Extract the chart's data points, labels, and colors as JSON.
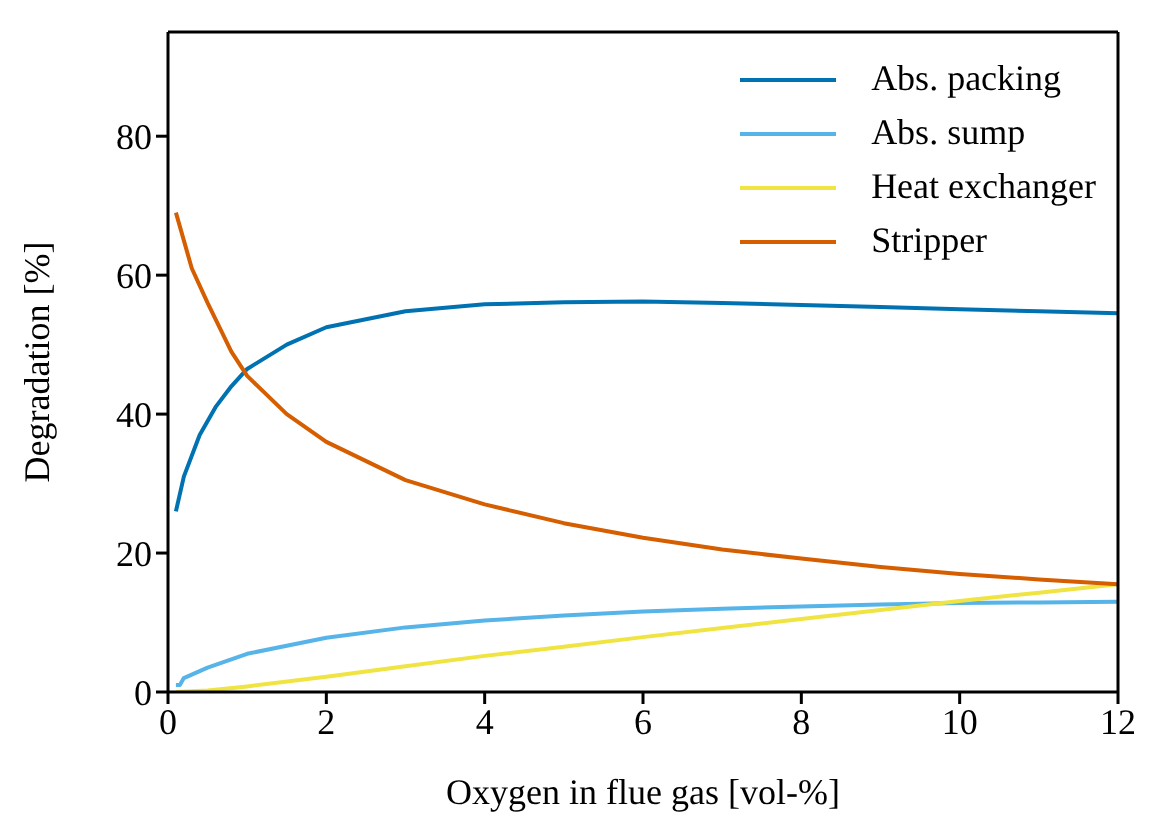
{
  "chart_data": {
    "type": "line",
    "xlabel": "Oxygen in flue gas [vol-%]",
    "ylabel": "Degradation [%]",
    "xlim": [
      0,
      12
    ],
    "xticks": [
      0,
      2,
      4,
      6,
      8,
      10,
      12
    ],
    "ylim": [
      0,
      95
    ],
    "yticks": [
      0,
      20,
      40,
      60,
      80
    ],
    "grid": false,
    "legend": "top right",
    "marker": "none",
    "line_style": "solid",
    "series": [
      {
        "name": "Abs. packing",
        "color": "#0072b2",
        "x": [
          0.1,
          0.2,
          0.4,
          0.6,
          0.8,
          1,
          1.5,
          2,
          3,
          4,
          5,
          6,
          7,
          8,
          9,
          10,
          11,
          12
        ],
        "values": [
          26,
          31,
          37,
          41,
          44,
          46.5,
          50,
          52.5,
          54.8,
          55.8,
          56.1,
          56.2,
          56,
          55.7,
          55.4,
          55.1,
          54.8,
          54.5
        ]
      },
      {
        "name": "Abs. sump",
        "color": "#56b4e9",
        "x": [
          0.1,
          0.15,
          0.2,
          0.3,
          0.5,
          1,
          2,
          3,
          4,
          5,
          6,
          7,
          8,
          9,
          10,
          11,
          12
        ],
        "values": [
          1,
          1,
          2,
          2.5,
          3.5,
          5.5,
          7.8,
          9.3,
          10.3,
          11,
          11.6,
          12,
          12.3,
          12.6,
          12.8,
          12.9,
          13
        ]
      },
      {
        "name": "Heat exchanger",
        "color": "#f0e442",
        "x": [
          0.1,
          0.5,
          1,
          2,
          3,
          4,
          5,
          6,
          7,
          8,
          9,
          10,
          11,
          12
        ],
        "values": [
          0,
          0.2,
          0.8,
          2.2,
          3.7,
          5.2,
          6.5,
          7.9,
          9.2,
          10.5,
          11.8,
          13.1,
          14.3,
          15.5
        ]
      },
      {
        "name": "Stripper",
        "color": "#d55e00",
        "x": [
          0.1,
          0.2,
          0.3,
          0.5,
          0.8,
          1,
          1.5,
          2,
          3,
          4,
          5,
          6,
          7,
          8,
          9,
          10,
          11,
          12
        ],
        "values": [
          69,
          65,
          61,
          56,
          49,
          45.5,
          40,
          36,
          30.5,
          27,
          24.3,
          22.2,
          20.5,
          19.2,
          18,
          17,
          16.2,
          15.5
        ]
      }
    ]
  }
}
